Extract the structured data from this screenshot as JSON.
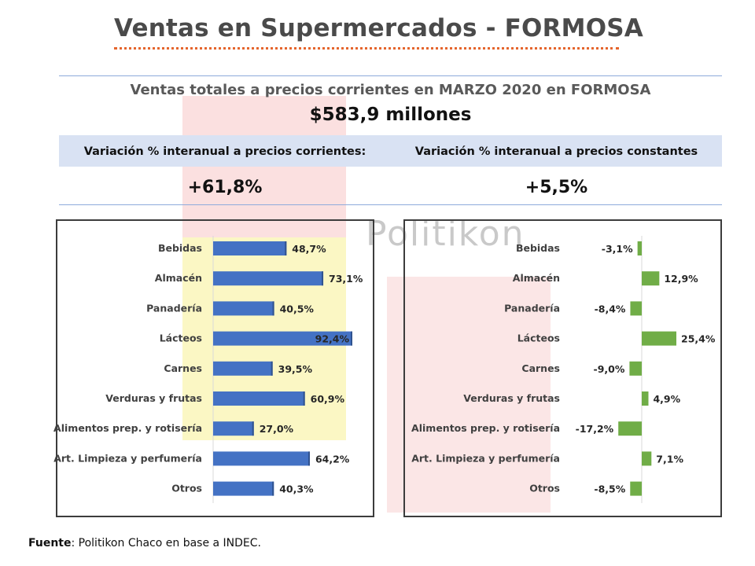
{
  "header": {
    "title": "Ventas en Supermercados - FORMOSA"
  },
  "watermark": {
    "text": "Politikon"
  },
  "summary": {
    "title": "Ventas totales a precios corrientes en MARZO 2020 en FORMOSA",
    "amount": "$583,9 millones",
    "current_label": "Variación % interanual a precios corrientes:",
    "constant_label": "Variación % interanual a precios constantes",
    "current_value": "+61,8%",
    "constant_value": "+5,5%"
  },
  "footer": {
    "source_label": "Fuente",
    "source_text": ": Politikon Chaco en base a INDEC."
  },
  "colors": {
    "blue_bar": "#4472c4",
    "green_bar": "#70ad47",
    "accent": "#e5652d",
    "band": "#d9e2f3"
  },
  "chart_data": [
    {
      "type": "bar",
      "orientation": "horizontal",
      "categories": [
        "Bebidas",
        "Almacén",
        "Panadería",
        "Lácteos",
        "Carnes",
        "Verduras y frutas",
        "Alimentos prep. y rotisería",
        "Art. Limpieza y perfumería",
        "Otros"
      ],
      "values": [
        48.7,
        73.1,
        40.5,
        92.4,
        39.5,
        60.9,
        27.0,
        64.2,
        40.3
      ],
      "labels": [
        "48,7%",
        "73,1%",
        "40,5%",
        "92,4%",
        "39,5%",
        "60,9%",
        "27,0%",
        "64,2%",
        "40,3%"
      ],
      "xlim": [
        0,
        100
      ],
      "color": "#4472c4"
    },
    {
      "type": "bar",
      "orientation": "horizontal",
      "categories": [
        "Bebidas",
        "Almacén",
        "Panadería",
        "Lácteos",
        "Carnes",
        "Verduras y frutas",
        "Alimentos prep. y rotisería",
        "Art. Limpieza y perfumería",
        "Otros"
      ],
      "values": [
        -3.1,
        12.9,
        -8.4,
        25.4,
        -9.0,
        4.9,
        -17.2,
        7.1,
        -8.5
      ],
      "labels": [
        "-3,1%",
        "12,9%",
        "-8,4%",
        "25,4%",
        "-9,0%",
        "4,9%",
        "-17,2%",
        "7,1%",
        "-8,5%"
      ],
      "xlim": [
        -20,
        30
      ],
      "color": "#70ad47"
    }
  ]
}
